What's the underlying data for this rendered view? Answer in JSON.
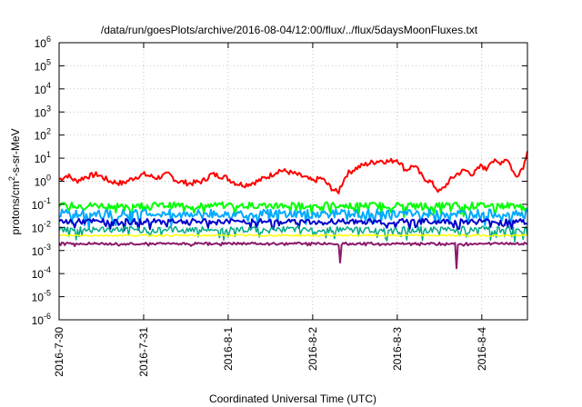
{
  "chart_data": {
    "type": "line",
    "title": "/data/run/goesPlots/archive/2016-08-04/12:00/flux/../flux/5daysMoonFluxes.txt",
    "xlabel": "Coordinated Universal Time (UTC)",
    "ylabel": {
      "base": "protons/cm",
      "sup": "2",
      "rest": "-s-sr-MeV"
    },
    "yscale": "log",
    "ylim": [
      1e-06,
      1000000.0
    ],
    "y_ticks": [
      {
        "base": "10",
        "exp": "-6",
        "value": 1e-06
      },
      {
        "base": "10",
        "exp": "-5",
        "value": 1e-05
      },
      {
        "base": "10",
        "exp": "-4",
        "value": 0.0001
      },
      {
        "base": "10",
        "exp": "-3",
        "value": 0.001
      },
      {
        "base": "10",
        "exp": "-2",
        "value": 0.01
      },
      {
        "base": "10",
        "exp": "-1",
        "value": 0.1
      },
      {
        "base": "10",
        "exp": "0",
        "value": 1
      },
      {
        "base": "10",
        "exp": "1",
        "value": 10
      },
      {
        "base": "10",
        "exp": "2",
        "value": 100
      },
      {
        "base": "10",
        "exp": "3",
        "value": 1000
      },
      {
        "base": "10",
        "exp": "4",
        "value": 10000
      },
      {
        "base": "10",
        "exp": "5",
        "value": 100000
      },
      {
        "base": "10",
        "exp": "6",
        "value": 1000000
      }
    ],
    "xlim": [
      "2016-07-30",
      "2016-08-04 13:00"
    ],
    "x_ticks": [
      "2016-7-30",
      "2016-7-31",
      "2016-8-1",
      "2016-8-2",
      "2016-8-3",
      "2016-8-4"
    ],
    "grid": true,
    "x_end_day": 5.54,
    "series": [
      {
        "color": "#ff0000",
        "width": 2,
        "days": [
          0,
          0.1,
          0.2,
          0.3,
          0.45,
          0.6,
          0.75,
          0.9,
          1.0,
          1.15,
          1.3,
          1.4,
          1.55,
          1.7,
          1.8,
          1.95,
          2.1,
          2.2,
          2.35,
          2.5,
          2.6,
          2.7,
          2.8,
          2.9,
          3.0,
          3.1,
          3.2,
          3.3,
          3.32,
          3.4,
          3.5,
          3.6,
          3.7,
          3.8,
          3.9,
          4.0,
          4.1,
          4.2,
          4.3,
          4.4,
          4.5,
          4.55,
          4.6,
          4.7,
          4.8,
          4.9,
          5.0,
          5.05,
          5.1,
          5.2,
          5.3,
          5.4,
          5.5,
          5.54
        ],
        "values": [
          1.2,
          1.8,
          1.0,
          1.5,
          2.0,
          1.0,
          0.8,
          1.5,
          2.0,
          1.4,
          2.0,
          1.0,
          0.8,
          1.0,
          2.0,
          1.6,
          0.8,
          0.7,
          1.0,
          1.8,
          3.0,
          2.6,
          2.0,
          1.5,
          1.0,
          1.4,
          0.6,
          0.3,
          0.5,
          2.0,
          3.5,
          5.0,
          6.5,
          8.0,
          7.0,
          9.0,
          3.0,
          5.0,
          1.5,
          0.9,
          0.35,
          0.5,
          0.9,
          2.0,
          3.0,
          2.0,
          5.0,
          3.0,
          8.0,
          6.0,
          10.0,
          1.5,
          5.0,
          25.0
        ],
        "noise": 0.12
      },
      {
        "color": "#00ff00",
        "width": 2,
        "days": [
          0,
          5.54
        ],
        "values": [
          0.09,
          0.09
        ],
        "noise": 0.14,
        "dip": 0.4
      },
      {
        "color": "#00aaff",
        "width": 2,
        "days": [
          0,
          5.54
        ],
        "values": [
          0.04,
          0.04
        ],
        "noise": 0.18,
        "dip": 0.5
      },
      {
        "color": "#0000cc",
        "width": 2,
        "days": [
          0,
          5.54
        ],
        "values": [
          0.018,
          0.018
        ],
        "noise": 0.12,
        "dip": 0.3
      },
      {
        "color": "#00aa88",
        "width": 1.5,
        "days": [
          0,
          5.54
        ],
        "values": [
          0.008,
          0.008
        ],
        "noise": 0.14,
        "dip": 0.4
      },
      {
        "color": "#ffff00",
        "width": 1.5,
        "days": [
          0,
          5.54
        ],
        "values": [
          0.0045,
          0.0045
        ],
        "noise": 0.04,
        "dip": 0.0
      },
      {
        "color": "#8b1a6b",
        "width": 2,
        "days": [
          0,
          5.54
        ],
        "values": [
          0.002,
          0.002
        ],
        "noise": 0.05,
        "dip": 0.08,
        "spikes": [
          {
            "day": 3.32,
            "value": 0.0003
          },
          {
            "day": 4.7,
            "value": 0.00017
          }
        ]
      }
    ]
  }
}
